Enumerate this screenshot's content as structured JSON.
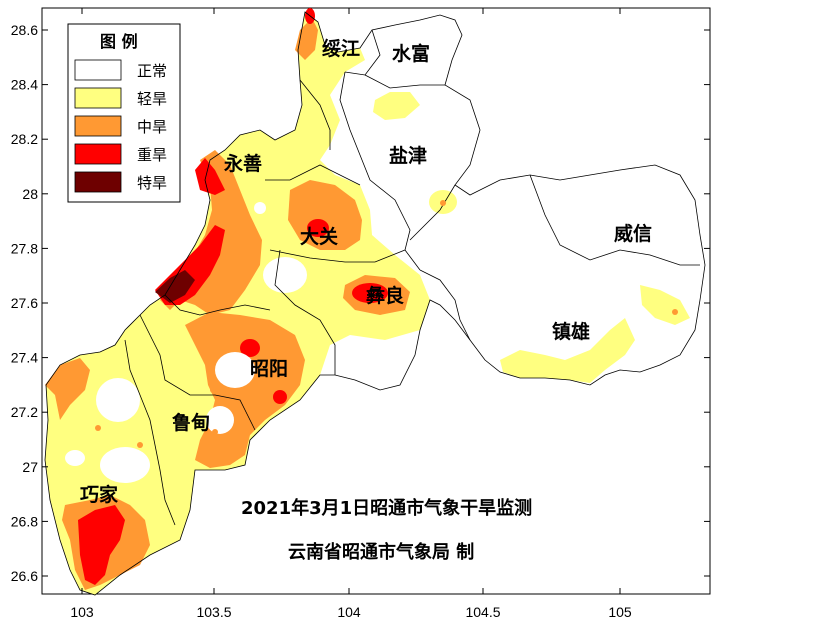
{
  "map": {
    "title_line1": "2021年3月1日昭通市气象干旱监测",
    "title_line2": "云南省昭通市气象局 制",
    "legend": {
      "title": "图 例",
      "items": [
        {
          "label": "正常",
          "color": "#ffffff"
        },
        {
          "label": "轻旱",
          "color": "#ffff80"
        },
        {
          "label": "中旱",
          "color": "#ff9933"
        },
        {
          "label": "重旱",
          "color": "#ff0000"
        },
        {
          "label": "特旱",
          "color": "#6e0000"
        }
      ]
    },
    "counties": [
      {
        "name": "绥江"
      },
      {
        "name": "水富"
      },
      {
        "name": "盐津"
      },
      {
        "name": "永善"
      },
      {
        "name": "大关"
      },
      {
        "name": "威信"
      },
      {
        "name": "彝良"
      },
      {
        "name": "镇雄"
      },
      {
        "name": "昭阳"
      },
      {
        "name": "鲁甸"
      },
      {
        "name": "巧家"
      }
    ],
    "x_ticks": [
      "103",
      "103.5",
      "104",
      "104.5",
      "105"
    ],
    "y_ticks": [
      "28.6",
      "28.4",
      "28.2",
      "28",
      "27.8",
      "27.6",
      "27.4",
      "27.2",
      "27",
      "26.8",
      "26.6"
    ]
  }
}
